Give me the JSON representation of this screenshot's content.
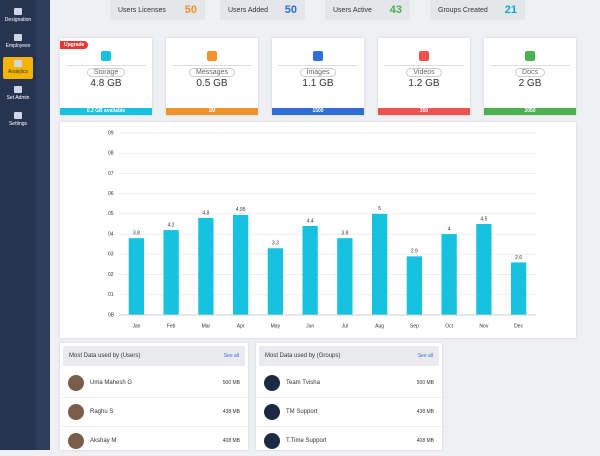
{
  "sidebar": {
    "items": [
      "Designation",
      "Employees",
      "Analytics",
      "Set Admin",
      "Settings"
    ]
  },
  "stats": [
    {
      "label": "Users Licenses",
      "value": "50",
      "color": "#f0932b"
    },
    {
      "label": "Users Added",
      "value": "50",
      "color": "#2f6fd6"
    },
    {
      "label": "Users Active",
      "value": "43",
      "color": "#4caf50"
    },
    {
      "label": "Groups Created",
      "value": "21",
      "color": "#16a8d8"
    }
  ],
  "storage": {
    "badge": "Upgrade",
    "cards": [
      {
        "label": "Storage",
        "value": "4.8 GB",
        "footer": "0.2 GB available",
        "color": "#17c1e0"
      },
      {
        "label": "Messages",
        "value": "0.5 GB",
        "footer": "1M",
        "color": "#f0932b"
      },
      {
        "label": "Images",
        "value": "1.1 GB",
        "footer": "1500",
        "color": "#2f6fd6"
      },
      {
        "label": "Videos",
        "value": "1.2 GB",
        "footer": "350",
        "color": "#ef5350"
      },
      {
        "label": "Docs",
        "value": "2 GB",
        "footer": "2050",
        "color": "#4caf50"
      }
    ]
  },
  "chart_data": {
    "type": "bar",
    "categories": [
      "Jan",
      "Feb",
      "Mar",
      "Apr",
      "May",
      "Jun",
      "Jul",
      "Aug",
      "Sep",
      "Oct",
      "Nov",
      "Dec"
    ],
    "values": [
      3.8,
      4.2,
      4.8,
      4.95,
      3.3,
      4.4,
      3.8,
      5,
      2.9,
      4,
      4.5,
      2.6
    ],
    "color": "#17c1e0",
    "ylim": [
      0,
      9
    ],
    "yticks": [
      {
        "value": 0,
        "label": "0B"
      },
      {
        "value": 1,
        "label": "01"
      },
      {
        "value": 2,
        "label": "02"
      },
      {
        "value": 3,
        "label": "03"
      },
      {
        "value": 4,
        "label": "04"
      },
      {
        "value": 5,
        "label": "05"
      },
      {
        "value": 6,
        "label": "06"
      },
      {
        "value": 7,
        "label": "07"
      },
      {
        "value": 8,
        "label": "08"
      },
      {
        "value": 9,
        "label": "09"
      }
    ],
    "grid": true
  },
  "users": {
    "title": "Most Data used by (Users)",
    "link": "See all",
    "rows": [
      {
        "name": "Uma Mahesh G",
        "size": "500 MB"
      },
      {
        "name": "Raghu S",
        "size": "438 MB"
      },
      {
        "name": "Akshay M",
        "size": "408 MB"
      }
    ]
  },
  "groups": {
    "title": "Most Data used by (Groups)",
    "link": "See all",
    "rows": [
      {
        "name": "Team Tvisha",
        "size": "500 MB"
      },
      {
        "name": "TM Support",
        "size": "438 MB"
      },
      {
        "name": "T.Time Support",
        "size": "408 MB"
      }
    ]
  }
}
